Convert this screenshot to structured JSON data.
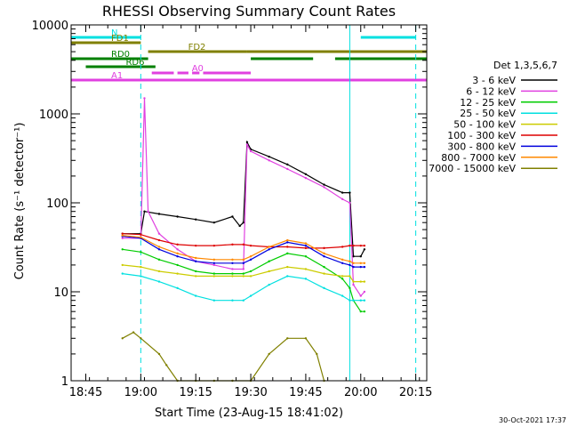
{
  "chart_data": {
    "type": "line",
    "title": "RHESSI Observing Summary Count Rates",
    "xlabel": "Start Time (23-Aug-15 18:41:02)",
    "ylabel": "Count Rate (s⁻¹ detector⁻¹)",
    "footer": "30-Oct-2021 17:37",
    "y_scale": "log",
    "xlim": [
      "18:41",
      "20:18"
    ],
    "ylim": [
      1,
      10000
    ],
    "x_ticks": [
      "18:45",
      "19:00",
      "19:15",
      "19:30",
      "19:45",
      "20:00",
      "20:15"
    ],
    "y_ticks": [
      "1",
      "10",
      "100",
      "1000",
      "10000"
    ],
    "legend": {
      "title": "Det 1,3,5,6,7",
      "position": "right",
      "entries": [
        {
          "label": "3 - 6 keV",
          "color": "#000000"
        },
        {
          "label": "6 - 12 keV",
          "color": "#e040e0"
        },
        {
          "label": "12 - 25 keV",
          "color": "#00cc00"
        },
        {
          "label": "25 - 50 keV",
          "color": "#00e0e0"
        },
        {
          "label": "50 - 100 keV",
          "color": "#cccc00"
        },
        {
          "label": "100 - 300 keV",
          "color": "#dd0000"
        },
        {
          "label": "300 - 800 keV",
          "color": "#0000dd"
        },
        {
          "label": "800 - 7000 keV",
          "color": "#ff8800"
        },
        {
          "label": "7000 - 15000 keV",
          "color": "#808000"
        }
      ]
    },
    "flag_bars": [
      {
        "label": "N",
        "color": "#00e0e0",
        "segments": [
          [
            "18:41",
            "19:00"
          ],
          [
            "20:00",
            "20:15"
          ]
        ]
      },
      {
        "label": "FD1",
        "color": "#808000",
        "segments": [
          [
            "18:41",
            "19:00"
          ]
        ]
      },
      {
        "label": "FD2",
        "color": "#808000",
        "segments": [
          [
            "19:02",
            "19:29"
          ],
          [
            "19:29",
            "20:18"
          ]
        ]
      },
      {
        "label": "RD0",
        "color": "#008000",
        "segments": [
          [
            "18:41",
            "19:02"
          ],
          [
            "19:30",
            "19:47"
          ],
          [
            "19:53",
            "20:18"
          ]
        ]
      },
      {
        "label": "RD6",
        "color": "#008000",
        "segments": [
          [
            "18:45",
            "19:04"
          ]
        ]
      },
      {
        "label": "A0",
        "color": "#e040e0",
        "segments": [
          [
            "19:03",
            "19:09"
          ],
          [
            "19:10",
            "19:13"
          ],
          [
            "19:14",
            "19:16"
          ],
          [
            "19:17",
            "19:30"
          ]
        ]
      },
      {
        "label": "A1",
        "color": "#e040e0",
        "segments": [
          [
            "18:41",
            "20:18"
          ]
        ]
      }
    ],
    "vlines": [
      {
        "time": "18:41",
        "color": "#00e0e0",
        "style": "solid"
      },
      {
        "time": "19:00",
        "color": "#00e0e0",
        "style": "dashed"
      },
      {
        "time": "19:57",
        "color": "#00e0e0",
        "style": "solid"
      },
      {
        "time": "20:15",
        "color": "#00e0e0",
        "style": "dashed"
      }
    ],
    "series": [
      {
        "name": "3 - 6 keV",
        "color": "#000000",
        "x": [
          "18:55",
          "19:00",
          "19:01",
          "19:05",
          "19:10",
          "19:15",
          "19:20",
          "19:25",
          "19:27",
          "19:28",
          "19:29",
          "19:30",
          "19:35",
          "19:40",
          "19:45",
          "19:50",
          "19:55",
          "19:57",
          "19:58",
          "20:00",
          "20:01"
        ],
        "y": [
          45,
          45,
          80,
          75,
          70,
          65,
          60,
          70,
          55,
          60,
          480,
          400,
          330,
          270,
          210,
          160,
          130,
          130,
          25,
          25,
          30
        ]
      },
      {
        "name": "6 - 12 keV",
        "color": "#e040e0",
        "x": [
          "18:55",
          "19:00",
          "19:01",
          "19:02",
          "19:05",
          "19:10",
          "19:15",
          "19:20",
          "19:25",
          "19:28",
          "19:29",
          "19:30",
          "19:35",
          "19:40",
          "19:45",
          "19:50",
          "19:55",
          "19:57",
          "19:58",
          "20:00",
          "20:01"
        ],
        "y": [
          40,
          40,
          1500,
          80,
          45,
          30,
          22,
          20,
          18,
          18,
          450,
          380,
          300,
          240,
          190,
          150,
          110,
          100,
          12,
          9,
          10
        ]
      },
      {
        "name": "12 - 25 keV",
        "color": "#00cc00",
        "x": [
          "18:55",
          "19:00",
          "19:05",
          "19:10",
          "19:15",
          "19:20",
          "19:25",
          "19:28",
          "19:30",
          "19:35",
          "19:40",
          "19:45",
          "19:50",
          "19:55",
          "19:57",
          "19:58",
          "20:00",
          "20:01"
        ],
        "y": [
          30,
          28,
          23,
          20,
          17,
          16,
          16,
          16,
          17,
          22,
          27,
          25,
          19,
          14,
          11,
          8,
          6,
          6
        ]
      },
      {
        "name": "25 - 50 keV",
        "color": "#00e0e0",
        "x": [
          "18:55",
          "19:00",
          "19:05",
          "19:10",
          "19:15",
          "19:20",
          "19:25",
          "19:28",
          "19:30",
          "19:35",
          "19:40",
          "19:45",
          "19:50",
          "19:55",
          "19:57",
          "19:58",
          "20:00",
          "20:01"
        ],
        "y": [
          16,
          15,
          13,
          11,
          9,
          8,
          8,
          8,
          9,
          12,
          15,
          14,
          11,
          9,
          8,
          8,
          8,
          8
        ]
      },
      {
        "name": "50 - 100 keV",
        "color": "#cccc00",
        "x": [
          "18:55",
          "19:00",
          "19:05",
          "19:10",
          "19:15",
          "19:20",
          "19:25",
          "19:28",
          "19:30",
          "19:35",
          "19:40",
          "19:45",
          "19:50",
          "19:55",
          "19:57",
          "19:58",
          "20:00",
          "20:01"
        ],
        "y": [
          20,
          19,
          17,
          16,
          15,
          15,
          15,
          15,
          15,
          17,
          19,
          18,
          16,
          15,
          15,
          13,
          13,
          13
        ]
      },
      {
        "name": "100 - 300 keV",
        "color": "#dd0000",
        "x": [
          "18:55",
          "19:00",
          "19:05",
          "19:10",
          "19:15",
          "19:20",
          "19:25",
          "19:28",
          "19:30",
          "19:35",
          "19:40",
          "19:45",
          "19:50",
          "19:55",
          "19:57",
          "19:58",
          "20:00",
          "20:01"
        ],
        "y": [
          45,
          44,
          38,
          34,
          33,
          33,
          34,
          34,
          33,
          32,
          32,
          31,
          31,
          32,
          33,
          33,
          33,
          33
        ]
      },
      {
        "name": "300 - 800 keV",
        "color": "#0000dd",
        "x": [
          "18:55",
          "19:00",
          "19:05",
          "19:10",
          "19:15",
          "19:20",
          "19:25",
          "19:28",
          "19:30",
          "19:35",
          "19:40",
          "19:45",
          "19:50",
          "19:55",
          "19:57",
          "19:58",
          "20:00",
          "20:01"
        ],
        "y": [
          42,
          40,
          30,
          25,
          22,
          21,
          21,
          21,
          23,
          30,
          36,
          33,
          25,
          21,
          20,
          19,
          19,
          19
        ]
      },
      {
        "name": "800 - 7000 keV",
        "color": "#ff8800",
        "x": [
          "18:55",
          "19:00",
          "19:05",
          "19:10",
          "19:15",
          "19:20",
          "19:25",
          "19:28",
          "19:30",
          "19:35",
          "19:40",
          "19:45",
          "19:50",
          "19:55",
          "19:57",
          "19:58",
          "20:00",
          "20:01"
        ],
        "y": [
          43,
          41,
          32,
          27,
          24,
          23,
          23,
          23,
          25,
          32,
          38,
          35,
          27,
          23,
          22,
          21,
          21,
          21
        ]
      },
      {
        "name": "7000 - 15000 keV",
        "color": "#808000",
        "x": [
          "18:55",
          "18:58",
          "19:00",
          "19:05",
          "19:07",
          "19:10",
          "19:15",
          "19:20",
          "19:25",
          "19:30",
          "19:35",
          "19:40",
          "19:45",
          "19:48",
          "19:50"
        ],
        "y": [
          3,
          3.5,
          3,
          2,
          1.5,
          1,
          1,
          1,
          1,
          1,
          2,
          3,
          3,
          2,
          1
        ]
      }
    ]
  }
}
